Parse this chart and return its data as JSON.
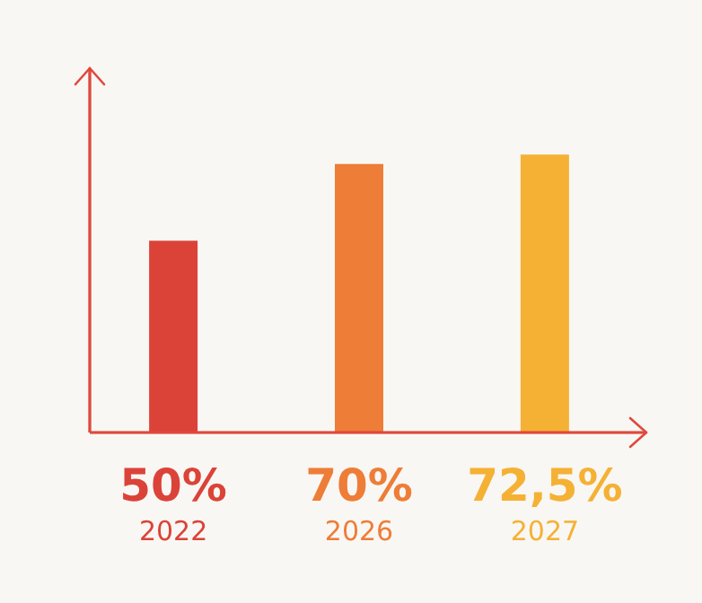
{
  "chart_data": {
    "type": "bar",
    "categories": [
      "2022",
      "2026",
      "2027"
    ],
    "values": [
      50,
      70,
      72.5
    ],
    "colors": [
      "#db4339",
      "#ee7d38",
      "#f5b134"
    ],
    "value_labels": [
      "50%",
      "70%",
      "72,5%"
    ],
    "ylim": [
      0,
      95
    ],
    "grid": false
  }
}
